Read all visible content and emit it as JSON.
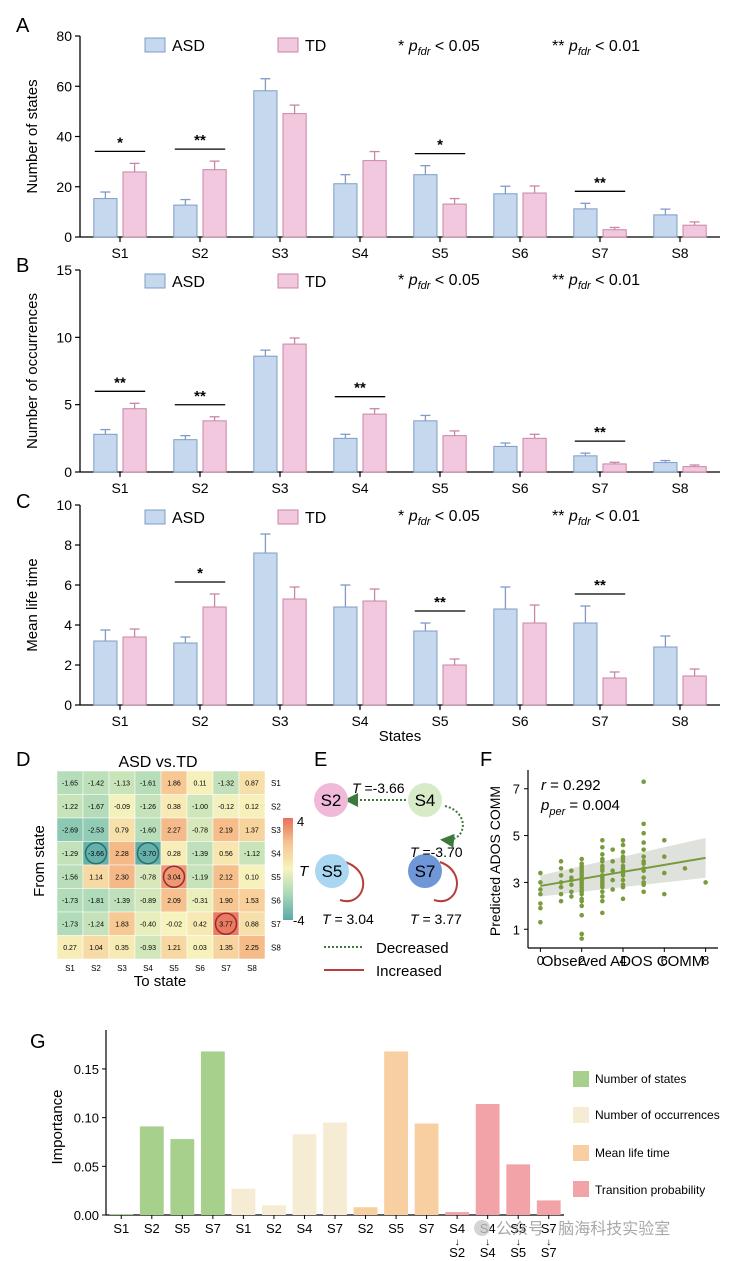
{
  "colors": {
    "asd": "#c5d8ee",
    "asd_stroke": "#7f9cc7",
    "td": "#f1c8dd",
    "td_stroke": "#c986a8",
    "feat_states": "#a8d08d",
    "feat_occ": "#f6ecd3",
    "feat_life": "#f8cfa0",
    "feat_trans": "#f1a3a7",
    "scatter": "#7a9a3e",
    "decreased": "#3c7a3c",
    "increased": "#b83d3d"
  },
  "legend": {
    "asd": "ASD",
    "td": "TD",
    "sig1_star": "*",
    "sig2_star": "**",
    "sig_p": "p",
    "sig_sub": "fdr",
    "sig1_rest": " < 0.05",
    "sig2_rest": " < 0.01"
  },
  "panels": {
    "A": "A",
    "B": "B",
    "C": "C",
    "D": "D",
    "E": "E",
    "F": "F",
    "G": "G"
  },
  "chart_data": [
    {
      "id": "A",
      "type": "bar",
      "ylabel": "Number of states",
      "xlabel": "",
      "ylim": [
        0,
        80
      ],
      "yticks": [
        0,
        20,
        40,
        60,
        80
      ],
      "categories": [
        "S1",
        "S2",
        "S3",
        "S4",
        "S5",
        "S6",
        "S7",
        "S8"
      ],
      "series": [
        {
          "name": "ASD",
          "values": [
            15.3,
            12.7,
            58.2,
            21.2,
            24.8,
            17.2,
            11.2,
            8.8
          ],
          "err": [
            2.6,
            2.2,
            4.8,
            3.6,
            3.6,
            3.0,
            2.2,
            2.3
          ]
        },
        {
          "name": "TD",
          "values": [
            25.9,
            26.8,
            49.1,
            30.4,
            13.1,
            17.5,
            2.9,
            4.7
          ],
          "err": [
            3.4,
            3.4,
            3.4,
            3.6,
            2.2,
            2.8,
            0.9,
            1.3
          ]
        }
      ],
      "significance": [
        {
          "cat": 0,
          "label": "*"
        },
        {
          "cat": 1,
          "label": "**"
        },
        {
          "cat": 4,
          "label": "*"
        },
        {
          "cat": 6,
          "label": "**"
        }
      ]
    },
    {
      "id": "B",
      "type": "bar",
      "ylabel": "Number of occurrences",
      "xlabel": "",
      "ylim": [
        0,
        15
      ],
      "yticks": [
        0,
        5,
        10,
        15
      ],
      "categories": [
        "S1",
        "S2",
        "S3",
        "S4",
        "S5",
        "S6",
        "S7",
        "S8"
      ],
      "series": [
        {
          "name": "ASD",
          "values": [
            2.8,
            2.4,
            8.6,
            2.5,
            3.8,
            1.9,
            1.2,
            0.7
          ],
          "err": [
            0.35,
            0.3,
            0.45,
            0.3,
            0.4,
            0.25,
            0.2,
            0.15
          ]
        },
        {
          "name": "TD",
          "values": [
            4.7,
            3.8,
            9.5,
            4.3,
            2.7,
            2.5,
            0.6,
            0.4
          ],
          "err": [
            0.4,
            0.3,
            0.45,
            0.4,
            0.35,
            0.3,
            0.12,
            0.12
          ]
        }
      ],
      "significance": [
        {
          "cat": 0,
          "label": "**"
        },
        {
          "cat": 1,
          "label": "**"
        },
        {
          "cat": 3,
          "label": "**"
        },
        {
          "cat": 6,
          "label": "**"
        }
      ]
    },
    {
      "id": "C",
      "type": "bar",
      "ylabel": "Mean life time",
      "xlabel": "States",
      "ylim": [
        0,
        10
      ],
      "yticks": [
        0,
        2,
        4,
        6,
        8,
        10
      ],
      "categories": [
        "S1",
        "S2",
        "S3",
        "S4",
        "S5",
        "S6",
        "S7",
        "S8"
      ],
      "series": [
        {
          "name": "ASD",
          "values": [
            3.2,
            3.1,
            7.6,
            4.9,
            3.7,
            4.8,
            4.1,
            2.9
          ],
          "err": [
            0.55,
            0.3,
            0.95,
            1.1,
            0.4,
            1.1,
            0.85,
            0.55
          ]
        },
        {
          "name": "TD",
          "values": [
            3.4,
            4.9,
            5.3,
            5.2,
            2.0,
            4.1,
            1.35,
            1.45
          ],
          "err": [
            0.4,
            0.65,
            0.6,
            0.6,
            0.3,
            0.9,
            0.3,
            0.35
          ]
        }
      ],
      "significance": [
        {
          "cat": 1,
          "label": "*"
        },
        {
          "cat": 4,
          "label": "**"
        },
        {
          "cat": 6,
          "label": "**"
        }
      ]
    },
    {
      "id": "D",
      "type": "heatmap",
      "title": "ASD vs.TD",
      "xlabel": "To state",
      "ylabel": "From state",
      "colorbar_label": "T",
      "colorbar_ticks": [
        "4",
        "-4"
      ],
      "vlim": [
        -4,
        4
      ],
      "rows": [
        "S1",
        "S2",
        "S3",
        "S4",
        "S5",
        "S6",
        "S7",
        "S8"
      ],
      "cols": [
        "S1",
        "S2",
        "S3",
        "S4",
        "S5",
        "S6",
        "S7",
        "S8"
      ],
      "values": [
        [
          "-1.65",
          "-1.42",
          "-1.13",
          "-1.61",
          "1.86",
          "0.11",
          "-1.32",
          "0.87"
        ],
        [
          "-1.22",
          "-1.67",
          "-0.09",
          "-1.26",
          "0.38",
          "-1.00",
          "-0.12",
          "0.12"
        ],
        [
          "-2.69",
          "-2.53",
          "0.79",
          "-1.60",
          "2.27",
          "-0.78",
          "2.19",
          "1.37"
        ],
        [
          "-1.29",
          "-3.66",
          "2.28",
          "-3.70",
          "0.28",
          "-1.39",
          "0.56",
          "-1.12"
        ],
        [
          "-1.56",
          "1.14",
          "2.30",
          "-0.78",
          "3.04",
          "-1.19",
          "2.12",
          "0.10"
        ],
        [
          "-1.73",
          "-1.81",
          "-1.39",
          "-0.89",
          "2.09",
          "-0.31",
          "1.90",
          "1.53"
        ],
        [
          "-1.73",
          "-1.24",
          "1.83",
          "-0.40",
          "-0.02",
          "0.42",
          "3.77",
          "0.88"
        ],
        [
          "0.27",
          "1.04",
          "0.35",
          "-0.93",
          "1.21",
          "0.03",
          "1.35",
          "2.25"
        ]
      ],
      "circled": [
        [
          3,
          1
        ],
        [
          3,
          3
        ],
        [
          4,
          4
        ],
        [
          6,
          6
        ]
      ]
    },
    {
      "id": "F",
      "type": "scatter",
      "xlabel": "Observed ADOS COMM",
      "ylabel": "Predicted ADOS COMM",
      "xlim": [
        -0.6,
        8.6
      ],
      "ylim": [
        0.2,
        7.8
      ],
      "xticks": [
        0,
        2,
        4,
        6,
        8
      ],
      "yticks": [
        1,
        3,
        5,
        7
      ],
      "fit": {
        "x": [
          0,
          8
        ],
        "y": [
          2.85,
          4.05
        ]
      },
      "x": [
        0,
        0,
        0,
        0,
        0,
        0,
        0,
        1,
        1,
        1,
        1,
        1,
        1,
        1,
        1.5,
        1.5,
        1.5,
        1.5,
        1.5,
        1.5,
        2,
        2,
        2,
        2,
        2,
        2,
        2,
        2,
        2,
        2,
        2,
        2,
        2,
        2,
        2,
        2,
        2,
        2,
        2,
        2,
        2,
        3,
        3,
        3,
        3,
        3,
        3,
        3,
        3,
        3,
        3,
        3,
        3,
        3,
        3,
        3,
        3,
        3,
        3,
        3.5,
        3.5,
        3.5,
        3.5,
        3.5,
        4,
        4,
        4,
        4,
        4,
        4,
        4,
        4,
        4,
        4,
        4,
        4,
        4,
        4,
        4,
        5,
        5,
        5,
        5,
        5,
        5,
        5,
        5,
        5,
        5,
        5,
        5,
        5,
        5,
        6,
        6,
        6,
        6,
        7,
        8
      ],
      "y": [
        1.3,
        2.1,
        2.5,
        3.0,
        3.4,
        2.7,
        1.9,
        2.8,
        3.0,
        3.3,
        3.6,
        2.5,
        2.2,
        3.9,
        2.6,
        2.9,
        3.2,
        3.5,
        3.1,
        2.4,
        0.8,
        1.6,
        2.0,
        2.3,
        2.6,
        2.8,
        3.0,
        3.2,
        3.4,
        3.6,
        3.8,
        4.0,
        3.1,
        2.9,
        2.7,
        3.3,
        2.5,
        3.7,
        3.5,
        2.2,
        0.6,
        1.7,
        2.2,
        2.6,
        2.9,
        3.1,
        3.3,
        3.5,
        3.7,
        3.9,
        4.2,
        4.5,
        4.8,
        3.0,
        2.4,
        2.8,
        3.6,
        4.0,
        3.2,
        2.7,
        3.1,
        3.5,
        3.9,
        4.4,
        2.3,
        2.8,
        3.1,
        3.4,
        3.7,
        3.9,
        4.1,
        4.3,
        4.6,
        4.8,
        3.3,
        3.6,
        2.9,
        4.0,
        3.5,
        2.6,
        2.9,
        3.2,
        3.5,
        3.8,
        4.1,
        4.4,
        4.7,
        5.1,
        5.5,
        7.3,
        3.9,
        3.0,
        3.6,
        2.5,
        3.4,
        4.1,
        4.8,
        3.6,
        3.0
      ]
    },
    {
      "id": "G",
      "type": "bar",
      "ylabel": "Importance",
      "ylim": [
        0,
        0.19
      ],
      "yticks": [
        "0.00",
        "0.05",
        "0.10",
        "0.15"
      ],
      "categories": [
        "S1",
        "S2",
        "S5",
        "S7",
        "S1",
        "S2",
        "S4",
        "S7",
        "S2",
        "S5",
        "S7",
        "S4→S2",
        "S4→S4",
        "S5→S5",
        "S7→S7"
      ],
      "values": [
        0.001,
        0.091,
        0.078,
        0.168,
        0.027,
        0.01,
        0.083,
        0.095,
        0.008,
        0.168,
        0.094,
        0.003,
        0.114,
        0.052,
        0.015
      ],
      "groups": [
        0,
        0,
        0,
        0,
        1,
        1,
        1,
        1,
        2,
        2,
        2,
        3,
        3,
        3,
        3
      ],
      "legend": [
        "Number of states",
        "Number of occurrences",
        "Mean life time",
        "Transition probability"
      ]
    }
  ],
  "stategraph": {
    "nodes": [
      {
        "label": "S2",
        "color": "#f0b9d8"
      },
      {
        "label": "S4",
        "color": "#d8ebc9"
      },
      {
        "label": "S5",
        "color": "#a9d7f1"
      },
      {
        "label": "S7",
        "color": "#6f96d6"
      }
    ],
    "t_prefix": "T",
    "t_s4_s2": " =-3.66",
    "t_s4_s4": " =-3.70",
    "t_s5": " = 3.04",
    "t_s7": " = 3.77",
    "legend_decreased": "Decreased",
    "legend_increased": "Increased"
  },
  "stats_f": {
    "r_label": "r",
    "r_value": " = 0.292",
    "p_label": "p",
    "p_sub": "per",
    "p_value": " = 0.004"
  },
  "watermark": "公众号 · 脑海科技实验室"
}
